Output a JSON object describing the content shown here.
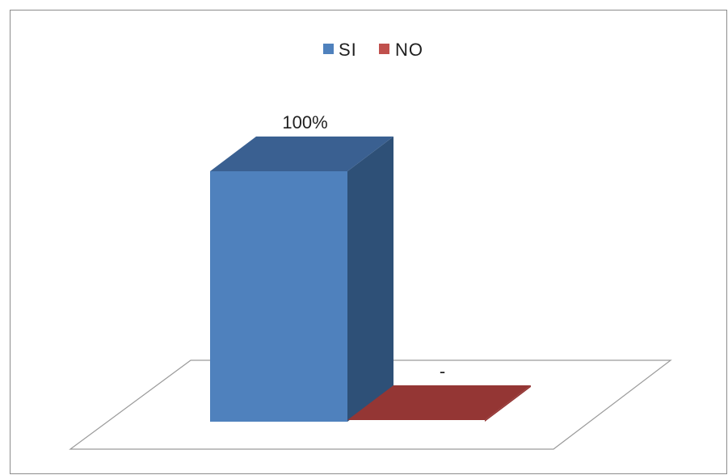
{
  "chart_data": {
    "type": "bar",
    "style": "3d-column",
    "categories": [
      ""
    ],
    "series": [
      {
        "name": "SI",
        "values": [
          100
        ],
        "label": "100%",
        "color": "#4f81bd",
        "side_color": "#2e5077",
        "top_color": "#3a6091"
      },
      {
        "name": "NO",
        "values": [
          0
        ],
        "label": "-",
        "color": "#943634",
        "side_color": "#943634",
        "top_color": "#943634"
      }
    ],
    "ylim": [
      0,
      100
    ],
    "grid": false,
    "legend": {
      "position": "top",
      "entries": [
        "SI",
        "NO"
      ]
    }
  }
}
